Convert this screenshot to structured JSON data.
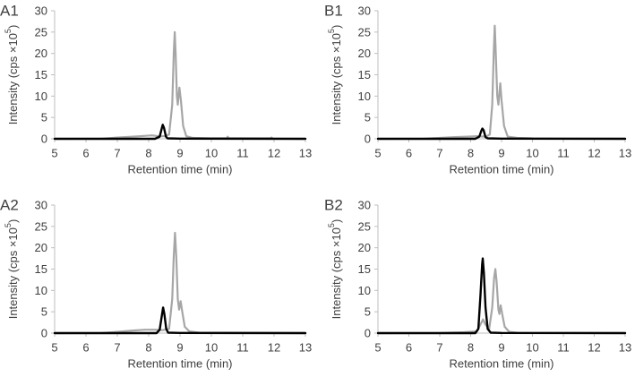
{
  "figure_title": "",
  "chart_data": [
    {
      "type": "line",
      "panel_label": "A1",
      "xlabel": "Retention time (min)",
      "ylabel_prefix": "Intensity (cps ×10",
      "ylabel_exponent": "5",
      "ylabel_suffix": ")",
      "xlim": [
        5,
        13
      ],
      "ylim": [
        0,
        30
      ],
      "xticks": [
        "5",
        "6",
        "7",
        "8",
        "9",
        "10",
        "11",
        "12",
        "13"
      ],
      "yticks": [
        "0",
        "5",
        "10",
        "15",
        "20",
        "25",
        "30"
      ],
      "grid": false,
      "series": [
        {
          "name": "gray trace",
          "color": "#a6a6a6",
          "points": [
            [
              5.0,
              0
            ],
            [
              6.5,
              0.05
            ],
            [
              7.0,
              0.3
            ],
            [
              7.5,
              0.5
            ],
            [
              7.9,
              0.7
            ],
            [
              8.1,
              0.8
            ],
            [
              8.3,
              0.6
            ],
            [
              8.5,
              0.6
            ],
            [
              8.65,
              1.0
            ],
            [
              8.75,
              8
            ],
            [
              8.8,
              20
            ],
            [
              8.83,
              25
            ],
            [
              8.86,
              20
            ],
            [
              8.9,
              10
            ],
            [
              8.93,
              8
            ],
            [
              8.98,
              12
            ],
            [
              9.03,
              9
            ],
            [
              9.1,
              3
            ],
            [
              9.2,
              0.6
            ],
            [
              9.4,
              0.2
            ],
            [
              10.0,
              0.1
            ],
            [
              10.5,
              0.1
            ],
            [
              10.52,
              0.5
            ],
            [
              10.55,
              0.1
            ],
            [
              11.9,
              0.1
            ],
            [
              11.92,
              0.3
            ],
            [
              11.95,
              0.05
            ],
            [
              13.0,
              0
            ]
          ]
        },
        {
          "name": "black trace",
          "color": "#000000",
          "points": [
            [
              5.0,
              0
            ],
            [
              8.2,
              0
            ],
            [
              8.35,
              0.5
            ],
            [
              8.42,
              2.5
            ],
            [
              8.45,
              3.3
            ],
            [
              8.49,
              2.5
            ],
            [
              8.55,
              0.5
            ],
            [
              8.6,
              0.1
            ],
            [
              9.0,
              0.05
            ],
            [
              13.0,
              0
            ]
          ]
        }
      ]
    },
    {
      "type": "line",
      "panel_label": "B1",
      "xlabel": "Retention time (min)",
      "ylabel_prefix": "Intensity (cps ×10",
      "ylabel_exponent": "5",
      "ylabel_suffix": ")",
      "xlim": [
        5,
        13
      ],
      "ylim": [
        0,
        30
      ],
      "xticks": [
        "5",
        "6",
        "7",
        "8",
        "9",
        "10",
        "11",
        "12",
        "13"
      ],
      "yticks": [
        "0",
        "5",
        "10",
        "15",
        "20",
        "25",
        "30"
      ],
      "grid": false,
      "series": [
        {
          "name": "gray trace",
          "color": "#a6a6a6",
          "points": [
            [
              5.0,
              0
            ],
            [
              6.5,
              0.05
            ],
            [
              7.0,
              0.2
            ],
            [
              7.5,
              0.4
            ],
            [
              7.9,
              0.5
            ],
            [
              8.2,
              0.6
            ],
            [
              8.5,
              0.5
            ],
            [
              8.62,
              1.0
            ],
            [
              8.7,
              8
            ],
            [
              8.75,
              21
            ],
            [
              8.78,
              26.5
            ],
            [
              8.81,
              21
            ],
            [
              8.86,
              10
            ],
            [
              8.9,
              8
            ],
            [
              8.96,
              13
            ],
            [
              9.0,
              9
            ],
            [
              9.08,
              3
            ],
            [
              9.2,
              0.5
            ],
            [
              9.5,
              0.2
            ],
            [
              10.0,
              0.1
            ],
            [
              13.0,
              0.05
            ]
          ]
        },
        {
          "name": "black trace",
          "color": "#000000",
          "points": [
            [
              5.0,
              0
            ],
            [
              8.15,
              0
            ],
            [
              8.28,
              0.5
            ],
            [
              8.35,
              2.0
            ],
            [
              8.38,
              2.4
            ],
            [
              8.42,
              2.0
            ],
            [
              8.48,
              0.4
            ],
            [
              8.55,
              0.1
            ],
            [
              9.0,
              0.05
            ],
            [
              13.0,
              0
            ]
          ]
        }
      ]
    },
    {
      "type": "line",
      "panel_label": "A2",
      "xlabel": "Retention time (min)",
      "ylabel_prefix": "Intensity (cps ×10",
      "ylabel_exponent": "5",
      "ylabel_suffix": ")",
      "xlim": [
        5,
        13
      ],
      "ylim": [
        0,
        30
      ],
      "xticks": [
        "5",
        "6",
        "7",
        "8",
        "9",
        "10",
        "11",
        "12",
        "13"
      ],
      "yticks": [
        "0",
        "5",
        "10",
        "15",
        "20",
        "25",
        "30"
      ],
      "grid": false,
      "series": [
        {
          "name": "gray trace",
          "color": "#a6a6a6",
          "points": [
            [
              5.0,
              0
            ],
            [
              6.5,
              0.05
            ],
            [
              7.0,
              0.3
            ],
            [
              7.5,
              0.6
            ],
            [
              7.9,
              0.8
            ],
            [
              8.2,
              0.8
            ],
            [
              8.45,
              0.7
            ],
            [
              8.65,
              1.0
            ],
            [
              8.75,
              8
            ],
            [
              8.8,
              18
            ],
            [
              8.84,
              23.5
            ],
            [
              8.88,
              18
            ],
            [
              8.93,
              8
            ],
            [
              8.97,
              5.5
            ],
            [
              9.02,
              7.5
            ],
            [
              9.07,
              5
            ],
            [
              9.15,
              1.5
            ],
            [
              9.3,
              0.4
            ],
            [
              9.6,
              0.1
            ],
            [
              13.0,
              0.05
            ]
          ]
        },
        {
          "name": "black trace",
          "color": "#000000",
          "points": [
            [
              5.0,
              0
            ],
            [
              8.25,
              0
            ],
            [
              8.35,
              0.8
            ],
            [
              8.43,
              4.5
            ],
            [
              8.46,
              6.0
            ],
            [
              8.5,
              4.5
            ],
            [
              8.56,
              1.0
            ],
            [
              8.62,
              0.1
            ],
            [
              9.0,
              0.05
            ],
            [
              13.0,
              0
            ]
          ]
        }
      ]
    },
    {
      "type": "line",
      "panel_label": "B2",
      "xlabel": "Retention time (min)",
      "ylabel_prefix": "Intensity (cps ×10",
      "ylabel_exponent": "5",
      "ylabel_suffix": ")",
      "xlim": [
        5,
        13
      ],
      "ylim": [
        0,
        30
      ],
      "xticks": [
        "5",
        "6",
        "7",
        "8",
        "9",
        "10",
        "11",
        "12",
        "13"
      ],
      "yticks": [
        "0",
        "5",
        "10",
        "15",
        "20",
        "25",
        "30"
      ],
      "grid": false,
      "series": [
        {
          "name": "gray trace",
          "color": "#a6a6a6",
          "points": [
            [
              5.0,
              0
            ],
            [
              7.0,
              0.05
            ],
            [
              7.8,
              0.2
            ],
            [
              8.2,
              0.4
            ],
            [
              8.4,
              3.2
            ],
            [
              8.48,
              2.0
            ],
            [
              8.6,
              1.0
            ],
            [
              8.7,
              6
            ],
            [
              8.76,
              13
            ],
            [
              8.8,
              15
            ],
            [
              8.84,
              12
            ],
            [
              8.9,
              5.5
            ],
            [
              8.93,
              4.5
            ],
            [
              8.97,
              6.5
            ],
            [
              9.02,
              4.5
            ],
            [
              9.1,
              1.5
            ],
            [
              9.25,
              0.3
            ],
            [
              9.5,
              0.1
            ],
            [
              13.0,
              0.05
            ]
          ]
        },
        {
          "name": "black trace",
          "color": "#000000",
          "points": [
            [
              5.0,
              0
            ],
            [
              8.15,
              0
            ],
            [
              8.25,
              1.0
            ],
            [
              8.32,
              9
            ],
            [
              8.37,
              16
            ],
            [
              8.39,
              17.5
            ],
            [
              8.43,
              14
            ],
            [
              8.48,
              6
            ],
            [
              8.55,
              1.0
            ],
            [
              8.65,
              0.1
            ],
            [
              9.0,
              0.05
            ],
            [
              13.0,
              0
            ]
          ]
        }
      ]
    }
  ]
}
